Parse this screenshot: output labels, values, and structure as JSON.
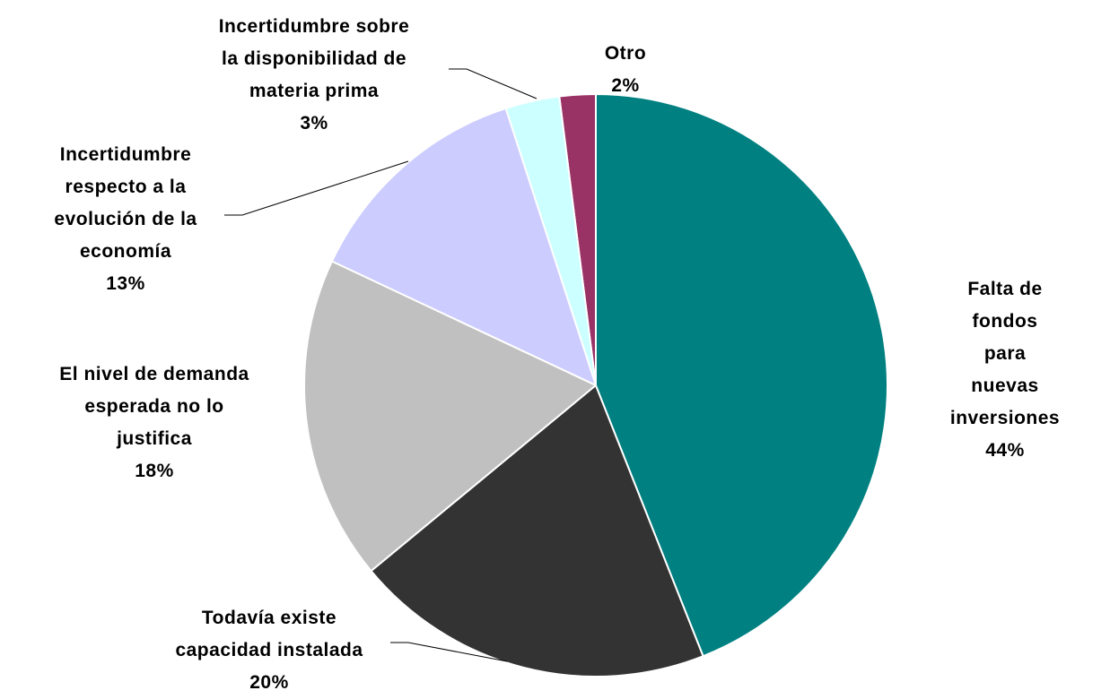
{
  "chart_data": {
    "type": "pie",
    "categories": [
      "Falta de fondos\npara nuevas\ninversiones",
      "Todavía existe\ncapacidad instalada",
      "El nivel de demanda\nesperada no lo\njustifica",
      "Incertidumbre\nrespecto a la\nevolución de la\neconomía",
      "Incertidumbre sobre\nla disponibilidad de\nmateria prima",
      "Otro"
    ],
    "values": [
      44,
      20,
      18,
      13,
      3,
      2
    ],
    "value_labels": [
      "44%",
      "20%",
      "18%",
      "13%",
      "3%",
      "2%"
    ],
    "colors": [
      "#008080",
      "#333333",
      "#c0c0c0",
      "#ccccff",
      "#ccffff",
      "#993366"
    ]
  }
}
